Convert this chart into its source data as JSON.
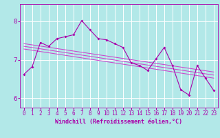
{
  "title": "",
  "xlabel": "Windchill (Refroidissement éolien,°C)",
  "bg_color": "#b2e8e8",
  "grid_color": "#ffffff",
  "line_color": "#aa00aa",
  "trend_color": "#cc44cc",
  "xlim": [
    -0.5,
    23.5
  ],
  "ylim": [
    5.75,
    8.45
  ],
  "yticks": [
    6,
    7,
    8
  ],
  "xticks": [
    0,
    1,
    2,
    3,
    4,
    5,
    6,
    7,
    8,
    9,
    10,
    11,
    12,
    13,
    14,
    15,
    16,
    17,
    18,
    19,
    20,
    21,
    22,
    23
  ],
  "series1_x": [
    0,
    1,
    2,
    3,
    4,
    5,
    6,
    7,
    8,
    9,
    10,
    11,
    12,
    13,
    14,
    15,
    16,
    17,
    18,
    19,
    20,
    21,
    22,
    23
  ],
  "series1_y": [
    6.62,
    6.82,
    7.45,
    7.35,
    7.55,
    7.6,
    7.65,
    8.02,
    7.78,
    7.55,
    7.52,
    7.42,
    7.32,
    6.92,
    6.85,
    6.72,
    7.02,
    7.32,
    6.85,
    6.22,
    6.08,
    6.85,
    6.52,
    6.2
  ],
  "trend1_x": [
    0,
    23
  ],
  "trend1_y": [
    7.42,
    6.68
  ],
  "trend2_x": [
    0,
    23
  ],
  "trend2_y": [
    7.35,
    6.6
  ],
  "trend3_x": [
    0,
    23
  ],
  "trend3_y": [
    7.28,
    6.52
  ],
  "tick_fontsize": 5.5,
  "label_fontsize": 6.0
}
